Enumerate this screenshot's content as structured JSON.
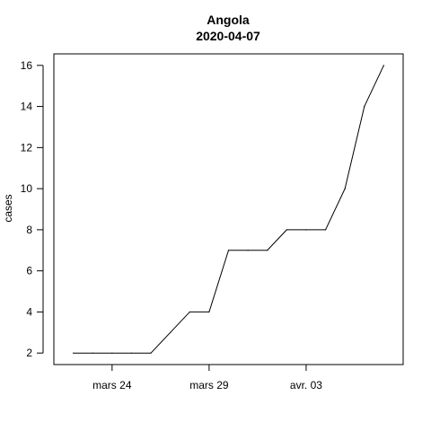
{
  "chart_data": {
    "type": "line",
    "title": "Angola",
    "subtitle": "2020-04-07",
    "xlabel": "",
    "ylabel": "cases",
    "x_ticks": [
      {
        "date": "2020-03-24",
        "label": "mars 24"
      },
      {
        "date": "2020-03-29",
        "label": "mars 29"
      },
      {
        "date": "2020-04-03",
        "label": "avr. 03"
      }
    ],
    "y_ticks": [
      2,
      4,
      6,
      8,
      10,
      12,
      14,
      16
    ],
    "xlim": [
      "2020-03-21",
      "2020-04-08"
    ],
    "ylim": [
      1.44,
      16.56
    ],
    "grid": false,
    "series": [
      {
        "x": [
          "2020-03-22",
          "2020-03-23",
          "2020-03-24",
          "2020-03-25",
          "2020-03-26",
          "2020-03-27",
          "2020-03-28",
          "2020-03-29",
          "2020-03-30",
          "2020-03-31",
          "2020-04-01",
          "2020-04-02",
          "2020-04-03",
          "2020-04-04",
          "2020-04-05",
          "2020-04-06",
          "2020-04-07"
        ],
        "values": [
          2,
          2,
          2,
          2,
          2,
          3,
          4,
          4,
          7,
          7,
          7,
          8,
          8,
          8,
          10,
          14,
          16
        ],
        "color": "#000000"
      }
    ]
  }
}
